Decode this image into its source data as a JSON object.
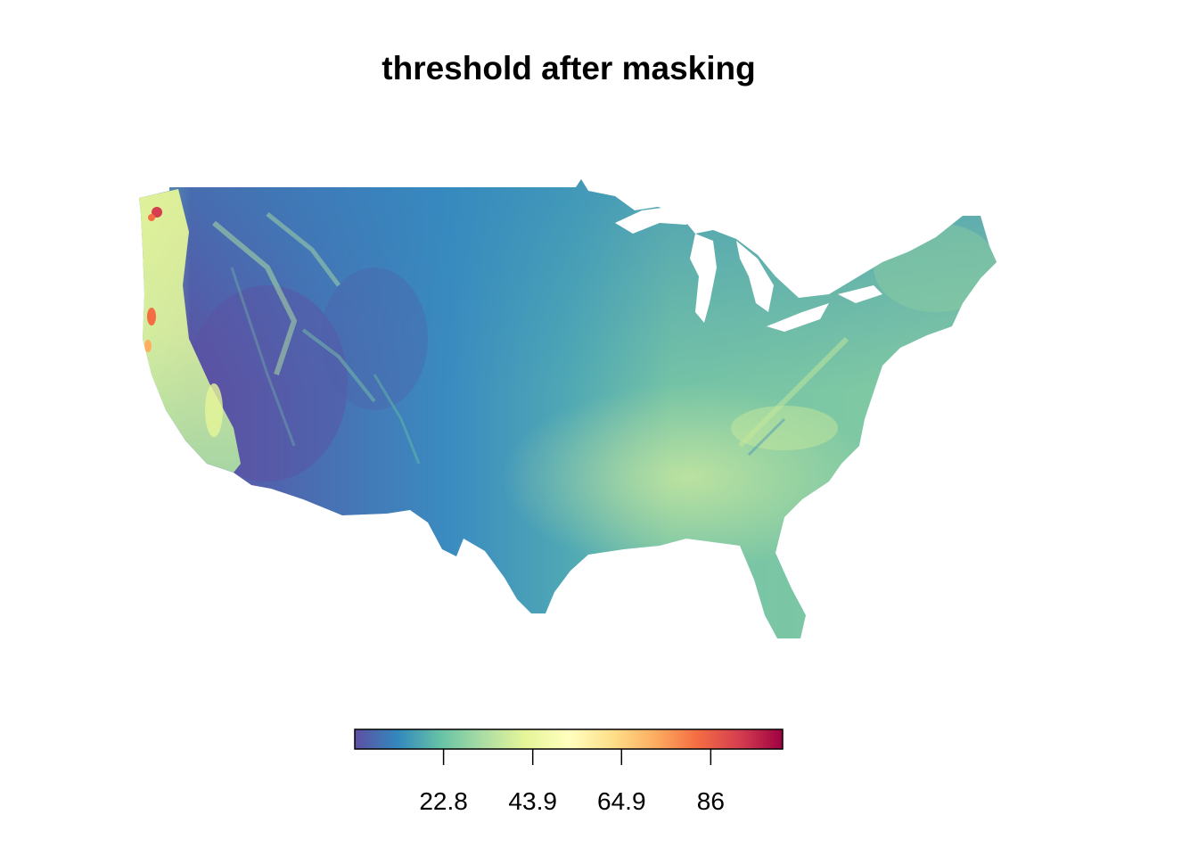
{
  "title": "threshold after masking",
  "map": {
    "region": "contiguous United States",
    "palette": "Spectral (reversed)",
    "palette_stops": [
      "#5E4FA2",
      "#3288BD",
      "#66C2A5",
      "#ABDDA4",
      "#E6F598",
      "#FFFFBF",
      "#FEE08B",
      "#FDAE61",
      "#F46D43",
      "#D53E4F",
      "#9E0142"
    ]
  },
  "legend": {
    "orientation": "horizontal",
    "min": 1.8,
    "max": 103.0,
    "ticks": [
      {
        "value": 22.8,
        "label": "22.8"
      },
      {
        "value": 43.9,
        "label": "43.9"
      },
      {
        "value": 64.9,
        "label": "64.9"
      },
      {
        "value": 86,
        "label": "86"
      }
    ]
  }
}
